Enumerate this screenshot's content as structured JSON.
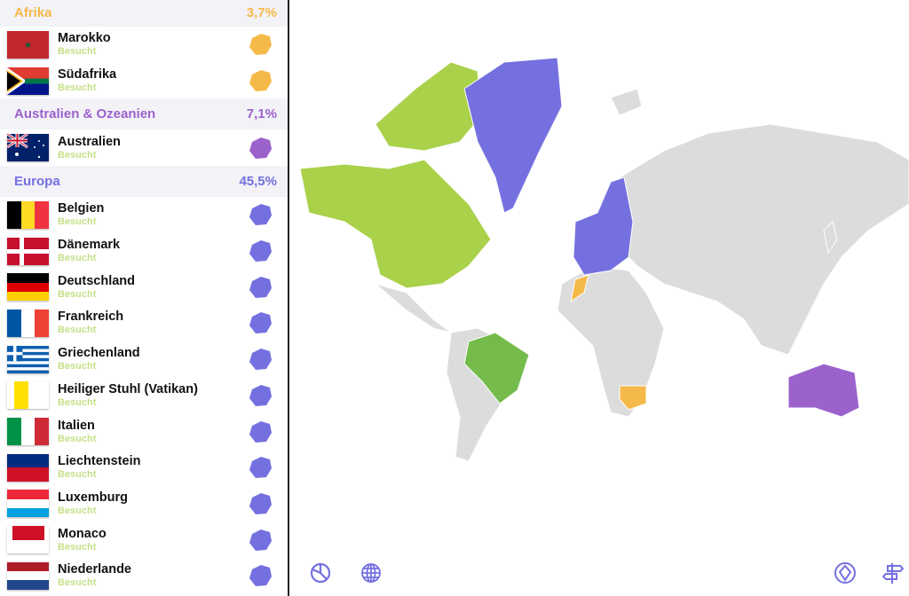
{
  "colors": {
    "africa": "#f5b94a",
    "oceania": "#9b62cc",
    "europe": "#7470e0",
    "north_america": "#a9d14a",
    "south_america": "#75bb4c",
    "unvisited": "#dcdcdc",
    "status": "#c6e08a"
  },
  "sections": [
    {
      "title": "Afrika",
      "percent": "3,7%",
      "color": "#f5b94a",
      "countries": [
        {
          "name": "Marokko",
          "status": "Besucht",
          "flag": "morocco"
        },
        {
          "name": "Südafrika",
          "status": "Besucht",
          "flag": "south-africa"
        }
      ]
    },
    {
      "title": "Australien & Ozeanien",
      "percent": "7,1%",
      "color": "#9b62cc",
      "countries": [
        {
          "name": "Australien",
          "status": "Besucht",
          "flag": "australia"
        }
      ]
    },
    {
      "title": "Europa",
      "percent": "45,5%",
      "color": "#7470e0",
      "countries": [
        {
          "name": "Belgien",
          "status": "Besucht",
          "flag": "belgium"
        },
        {
          "name": "Dänemark",
          "status": "Besucht",
          "flag": "denmark"
        },
        {
          "name": "Deutschland",
          "status": "Besucht",
          "flag": "germany"
        },
        {
          "name": "Frankreich",
          "status": "Besucht",
          "flag": "france"
        },
        {
          "name": "Griechenland",
          "status": "Besucht",
          "flag": "greece"
        },
        {
          "name": "Heiliger Stuhl (Vatikan)",
          "status": "Besucht",
          "flag": "vatican"
        },
        {
          "name": "Italien",
          "status": "Besucht",
          "flag": "italy"
        },
        {
          "name": "Liechtenstein",
          "status": "Besucht",
          "flag": "liechtenstein"
        },
        {
          "name": "Luxemburg",
          "status": "Besucht",
          "flag": "luxembourg"
        },
        {
          "name": "Monaco",
          "status": "Besucht",
          "flag": "monaco"
        },
        {
          "name": "Niederlande",
          "status": "Besucht",
          "flag": "netherlands"
        }
      ]
    }
  ],
  "toolbar": {
    "left": [
      "pie-chart-icon",
      "globe-icon"
    ],
    "right": [
      "world-heritage-icon",
      "signpost-icon"
    ]
  }
}
